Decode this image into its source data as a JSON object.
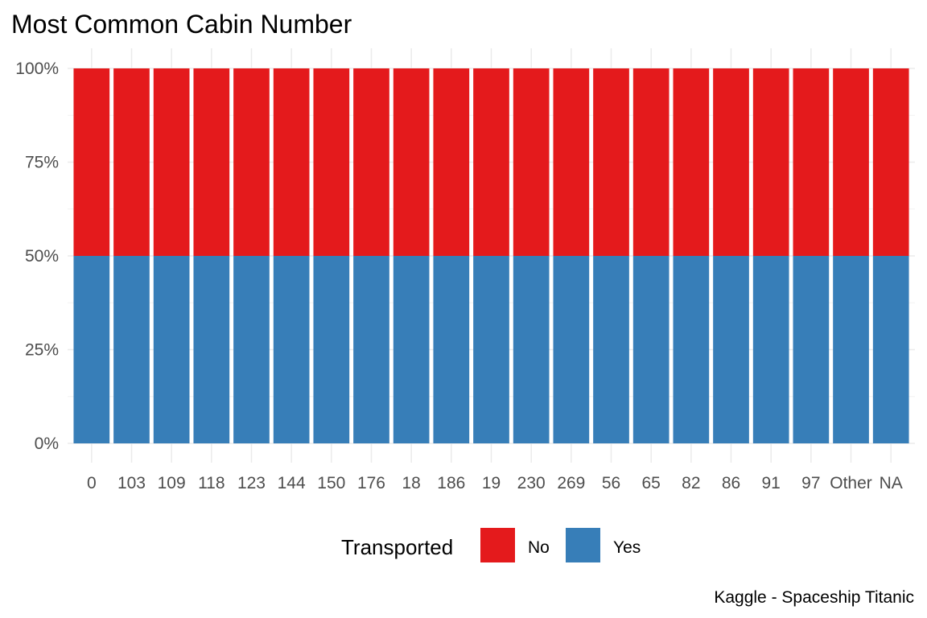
{
  "chart_data": {
    "type": "bar",
    "stacked": true,
    "normalized": true,
    "title": "Most Common Cabin Number",
    "xlabel": "",
    "ylabel": "",
    "caption": "Kaggle - Spaceship Titanic",
    "categories": [
      "0",
      "103",
      "109",
      "118",
      "123",
      "144",
      "150",
      "176",
      "18",
      "186",
      "19",
      "230",
      "269",
      "56",
      "65",
      "82",
      "86",
      "91",
      "97",
      "Other",
      "NA"
    ],
    "ylim": [
      0,
      1
    ],
    "yticks": [
      0,
      0.25,
      0.5,
      0.75,
      1
    ],
    "ytick_labels": [
      "0%",
      "25%",
      "50%",
      "75%",
      "100%"
    ],
    "grid": true,
    "legend": {
      "title": "Transported",
      "placement": "bottom",
      "entries": [
        "No",
        "Yes"
      ]
    },
    "series": [
      {
        "name": "No",
        "color": "#E41A1C",
        "values": [
          0.5,
          0.5,
          0.5,
          0.5,
          0.5,
          0.5,
          0.5,
          0.5,
          0.5,
          0.5,
          0.5,
          0.5,
          0.5,
          0.5,
          0.5,
          0.5,
          0.5,
          0.5,
          0.5,
          0.5,
          0.5
        ]
      },
      {
        "name": "Yes",
        "color": "#377EB8",
        "values": [
          0.5,
          0.5,
          0.5,
          0.5,
          0.5,
          0.5,
          0.5,
          0.5,
          0.5,
          0.5,
          0.5,
          0.5,
          0.5,
          0.5,
          0.5,
          0.5,
          0.5,
          0.5,
          0.5,
          0.5,
          0.5
        ]
      }
    ]
  }
}
